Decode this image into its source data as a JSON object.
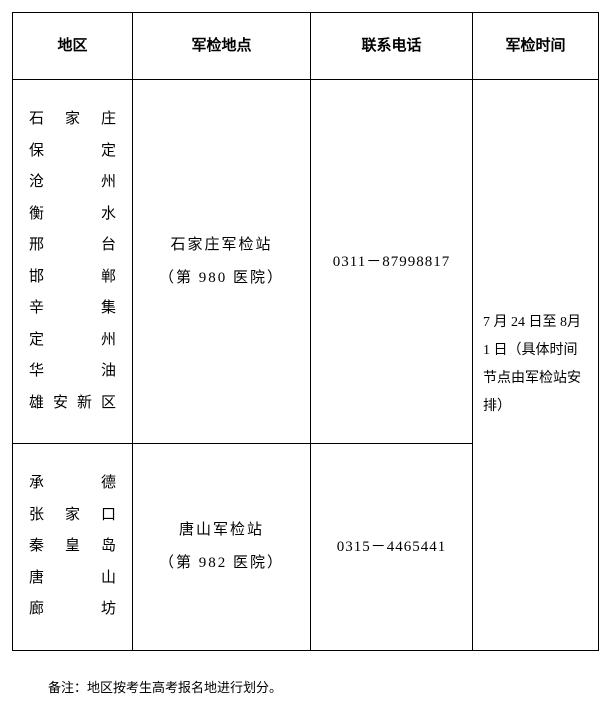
{
  "table": {
    "headers": {
      "region": "地区",
      "location": "军检地点",
      "phone": "联系电话",
      "time": "军检时间"
    },
    "rows": [
      {
        "regions": [
          "石家庄",
          "保　定",
          "沧　州",
          "衡　水",
          "邢　台",
          "邯　郸",
          "辛　集",
          "定　州",
          "华　油",
          "雄安新区"
        ],
        "location_name": "石家庄军检站",
        "location_detail": "（第 980 医院）",
        "phone": "0311－87998817"
      },
      {
        "regions": [
          "承　德",
          "张家口",
          "秦皇岛",
          "唐　山",
          "廊　坊"
        ],
        "location_name": "唐山军检站",
        "location_detail": "（第 982 医院）",
        "phone": "0315－4465441"
      }
    ],
    "time_text": "7 月 24 日至 8月 1 日（具体时间节点由军检站安排）"
  },
  "note": "备注：地区按考生高考报名地进行划分。",
  "colors": {
    "border": "#000000",
    "background": "#ffffff",
    "text": "#000000"
  }
}
